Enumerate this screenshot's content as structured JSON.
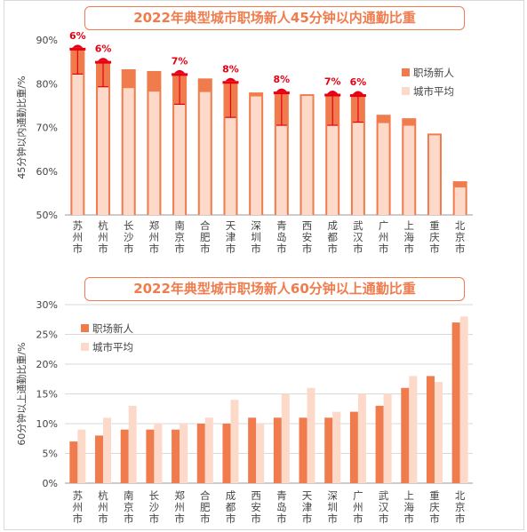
{
  "colors": {
    "new": "#f07b4c",
    "avg": "#fcd9c8",
    "axis": "#444444",
    "grid": "#d9d9d9",
    "marker": "#e60012",
    "title": "#f07b4c"
  },
  "chart_data": [
    {
      "type": "bar",
      "title": "2022年典型城市职场新人45分钟以内通勤比重",
      "ylabel": "45分钟以内通勤比重/%",
      "ylim": [
        50,
        90
      ],
      "yticks": [
        "50%",
        "60%",
        "70%",
        "80%",
        "90%"
      ],
      "legend_position": "right",
      "categories": [
        "苏州市",
        "杭州市",
        "长沙市",
        "郑州市",
        "南京市",
        "合肥市",
        "天津市",
        "深圳市",
        "青岛市",
        "西安市",
        "成都市",
        "武汉市",
        "广州市",
        "上海市",
        "重庆市",
        "北京市"
      ],
      "series": [
        {
          "name": "职场新人",
          "values": [
            87.8,
            84.8,
            83.3,
            82.9,
            82.0,
            81.2,
            80.2,
            78.0,
            77.8,
            77.6,
            77.3,
            77.2,
            72.9,
            72.1,
            68.6,
            57.7
          ]
        },
        {
          "name": "城市平均",
          "values": [
            82.2,
            79.3,
            79.0,
            78.2,
            75.3,
            78.1,
            72.3,
            77.1,
            70.5,
            77.2,
            70.5,
            71.2,
            71.0,
            70.4,
            68.2,
            56.3
          ]
        }
      ],
      "annotations": [
        {
          "category": "苏州市",
          "label": "6%"
        },
        {
          "category": "杭州市",
          "label": "6%"
        },
        {
          "category": "南京市",
          "label": "7%"
        },
        {
          "category": "天津市",
          "label": "8%"
        },
        {
          "category": "青岛市",
          "label": "8%"
        },
        {
          "category": "成都市",
          "label": "7%"
        },
        {
          "category": "武汉市",
          "label": "6%"
        }
      ]
    },
    {
      "type": "bar",
      "title": "2022年典型城市职场新人60分钟以上通勤比重",
      "ylabel": "60分钟以上通勤比重/%",
      "ylim": [
        0,
        30
      ],
      "yticks": [
        "0%",
        "5%",
        "10%",
        "15%",
        "20%",
        "25%",
        "30%"
      ],
      "legend_position": "top-left",
      "categories": [
        "苏州市",
        "杭州市",
        "南京市",
        "长沙市",
        "郑州市",
        "合肥市",
        "成都市",
        "西安市",
        "青岛市",
        "天津市",
        "深圳市",
        "广州市",
        "武汉市",
        "上海市",
        "重庆市",
        "北京市"
      ],
      "series": [
        {
          "name": "职场新人",
          "values": [
            7,
            8,
            9,
            9,
            9,
            10,
            10,
            11,
            11,
            11,
            11,
            12,
            13,
            16,
            18,
            27
          ]
        },
        {
          "name": "城市平均",
          "values": [
            9,
            11,
            13,
            10,
            10,
            11,
            14,
            10,
            15,
            16,
            12,
            15,
            15,
            18,
            17,
            28
          ]
        }
      ]
    }
  ]
}
